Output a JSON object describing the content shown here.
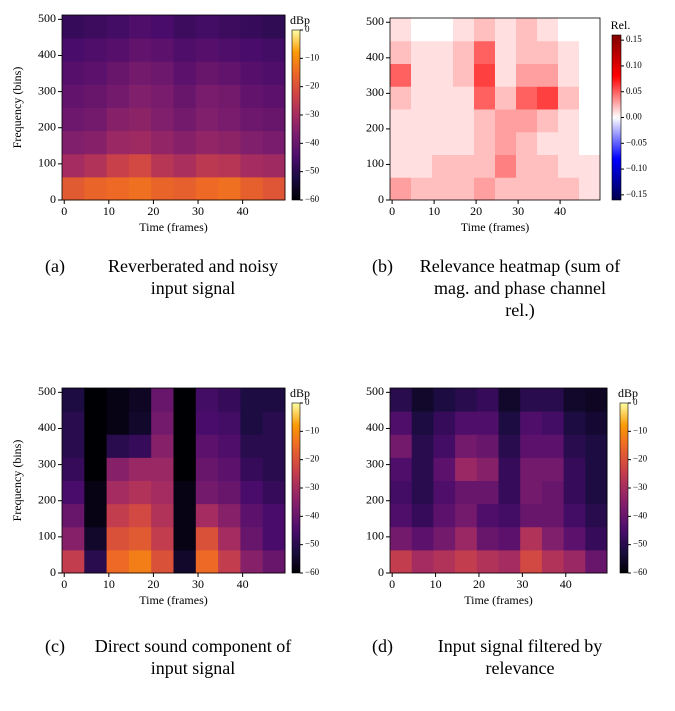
{
  "chart_data": [
    {
      "type": "heatmap",
      "caption_label": "(a)",
      "caption": "Reverberated and noisy input signal",
      "xlabel": "Time (frames)",
      "ylabel": "Frequency (bins)",
      "xlim": [
        -0.5,
        49.5
      ],
      "ylim": [
        0,
        512
      ],
      "xticks": [
        0,
        10,
        20,
        30,
        40
      ],
      "yticks": [
        0,
        100,
        200,
        300,
        400,
        500
      ],
      "xbins": [
        -0.5,
        4.5,
        9.5,
        14.5,
        19.5,
        24.5,
        29.5,
        34.5,
        39.5,
        44.5,
        49.5
      ],
      "ybins": [
        0,
        64,
        128,
        192,
        256,
        320,
        384,
        448,
        512
      ],
      "colormap": "inferno",
      "colorbar_label": "dBp",
      "clim": [
        -60,
        0
      ],
      "cticks": [
        0,
        {
          "value": -10,
          "label": "−10"
        },
        {
          "value": -20,
          "label": "−20"
        },
        {
          "value": -30,
          "label": "−30"
        },
        {
          "value": -40,
          "label": "−40"
        },
        {
          "value": -50,
          "label": "−50"
        },
        {
          "value": -60,
          "label": "−60"
        }
      ],
      "z": [
        [
          -18,
          -16,
          -15,
          -14,
          -16,
          -17,
          -15,
          -14,
          -17,
          -19
        ],
        [
          -30,
          -28,
          -24,
          -22,
          -27,
          -29,
          -26,
          -27,
          -30,
          -31
        ],
        [
          -36,
          -35,
          -32,
          -31,
          -33,
          -35,
          -33,
          -34,
          -36,
          -37
        ],
        [
          -39,
          -38,
          -35,
          -34,
          -36,
          -38,
          -36,
          -37,
          -39,
          -40
        ],
        [
          -41,
          -40,
          -38,
          -36,
          -37,
          -40,
          -37,
          -38,
          -41,
          -42
        ],
        [
          -43,
          -42,
          -40,
          -38,
          -39,
          -42,
          -40,
          -41,
          -43,
          -44
        ],
        [
          -45,
          -44,
          -43,
          -41,
          -42,
          -44,
          -43,
          -44,
          -45,
          -46
        ],
        [
          -48,
          -47,
          -46,
          -44,
          -45,
          -47,
          -46,
          -47,
          -48,
          -49
        ]
      ]
    },
    {
      "type": "heatmap",
      "caption_label": "(b)",
      "caption": "Relevance heatmap (sum of mag. and phase channel rel.)",
      "xlabel": "Time (frames)",
      "xlim": [
        -0.5,
        49.5
      ],
      "ylim": [
        0,
        512
      ],
      "xticks": [
        0,
        10,
        20,
        30,
        40
      ],
      "yticks": [
        0,
        100,
        200,
        300,
        400,
        500
      ],
      "xbins": [
        -0.5,
        4.5,
        9.5,
        14.5,
        19.5,
        24.5,
        29.5,
        34.5,
        39.5,
        44.5,
        49.5
      ],
      "ybins": [
        0,
        64,
        128,
        192,
        256,
        320,
        384,
        448,
        512
      ],
      "colormap": "seismic",
      "colorbar_label": "Rel.",
      "clim": [
        -0.16,
        0.16
      ],
      "cticks": [
        0.15,
        {
          "value": 0.1,
          "label": "0.10"
        },
        0.05,
        {
          "value": 0,
          "label": "0.00"
        },
        {
          "value": -0.05,
          "label": "−0.05"
        },
        {
          "value": -0.1,
          "label": "−0.10"
        },
        {
          "value": -0.15,
          "label": "−0.15"
        }
      ],
      "z": [
        [
          0.03,
          0.02,
          0.02,
          0.02,
          0.03,
          0.02,
          0.02,
          0.02,
          0.02,
          0.01
        ],
        [
          0.01,
          0.01,
          0.02,
          0.02,
          0.02,
          0.04,
          0.02,
          0.02,
          0.01,
          0.01
        ],
        [
          0.01,
          0.01,
          0.01,
          0.01,
          0.02,
          0.03,
          0.02,
          0.01,
          0.01,
          0
        ],
        [
          0.01,
          0.01,
          0.01,
          0.01,
          0.02,
          0.03,
          0.03,
          0.02,
          0.01,
          0
        ],
        [
          0.02,
          0.01,
          0.01,
          0.01,
          0.05,
          0.02,
          0.05,
          0.06,
          0.02,
          0
        ],
        [
          0.05,
          0.01,
          0.01,
          0.02,
          0.06,
          0.01,
          0.03,
          0.03,
          0.01,
          0
        ],
        [
          0.02,
          0.01,
          0.01,
          0.02,
          0.05,
          0.01,
          0.02,
          0.02,
          0.01,
          0
        ],
        [
          0.01,
          0,
          0,
          0.01,
          0.02,
          0.01,
          0.02,
          0.01,
          0,
          0
        ]
      ]
    },
    {
      "type": "heatmap",
      "caption_label": "(c)",
      "caption": "Direct sound component of input signal",
      "xlabel": "Time (frames)",
      "ylabel": "Frequency (bins)",
      "xlim": [
        -0.5,
        49.5
      ],
      "ylim": [
        0,
        512
      ],
      "xticks": [
        0,
        10,
        20,
        30,
        40
      ],
      "yticks": [
        0,
        100,
        200,
        300,
        400,
        500
      ],
      "xbins": [
        -0.5,
        4.5,
        9.5,
        14.5,
        19.5,
        24.5,
        29.5,
        34.5,
        39.5,
        44.5,
        49.5
      ],
      "ybins": [
        0,
        64,
        128,
        192,
        256,
        320,
        384,
        448,
        512
      ],
      "colormap": "inferno",
      "colorbar_label": "dBp",
      "clim": [
        -60,
        0
      ],
      "cticks": [
        0,
        {
          "value": -10,
          "label": "−10"
        },
        {
          "value": -20,
          "label": "−20"
        },
        {
          "value": -30,
          "label": "−30"
        },
        {
          "value": -40,
          "label": "−40"
        },
        {
          "value": -50,
          "label": "−50"
        },
        {
          "value": -60,
          "label": "−60"
        }
      ],
      "z": [
        [
          -25,
          -50,
          -15,
          -12,
          -20,
          -55,
          -15,
          -25,
          -35,
          -40
        ],
        [
          -35,
          -55,
          -20,
          -18,
          -25,
          -58,
          -20,
          -30,
          -40,
          -45
        ],
        [
          -40,
          -58,
          -25,
          -22,
          -28,
          -58,
          -30,
          -35,
          -42,
          -45
        ],
        [
          -45,
          -58,
          -30,
          -28,
          -30,
          -58,
          -38,
          -40,
          -45,
          -48
        ],
        [
          -48,
          -60,
          -35,
          -32,
          -32,
          -60,
          -40,
          -42,
          -48,
          -50
        ],
        [
          -50,
          -60,
          -50,
          -48,
          -35,
          -60,
          -42,
          -44,
          -50,
          -50
        ],
        [
          -50,
          -60,
          -58,
          -55,
          -38,
          -60,
          -45,
          -46,
          -52,
          -50
        ],
        [
          -52,
          -60,
          -58,
          -56,
          -40,
          -60,
          -46,
          -48,
          -52,
          -52
        ]
      ]
    },
    {
      "type": "heatmap",
      "caption_label": "(d)",
      "caption": "Input signal filtered by relevance",
      "xlabel": "Time (frames)",
      "xlim": [
        -0.5,
        49.5
      ],
      "ylim": [
        0,
        512
      ],
      "xticks": [
        0,
        10,
        20,
        30,
        40
      ],
      "yticks": [
        0,
        100,
        200,
        300,
        400,
        500
      ],
      "xbins": [
        -0.5,
        4.5,
        9.5,
        14.5,
        19.5,
        24.5,
        29.5,
        34.5,
        39.5,
        44.5,
        49.5
      ],
      "ybins": [
        0,
        64,
        128,
        192,
        256,
        320,
        384,
        448,
        512
      ],
      "colormap": "inferno",
      "colorbar_label": "dBp",
      "clim": [
        -60,
        0
      ],
      "cticks": [
        0,
        {
          "value": -10,
          "label": "−10"
        },
        {
          "value": -20,
          "label": "−20"
        },
        {
          "value": -30,
          "label": "−30"
        },
        {
          "value": -40,
          "label": "−40"
        },
        {
          "value": -50,
          "label": "−50"
        },
        {
          "value": -60,
          "label": "−60"
        }
      ],
      "z": [
        [
          -25,
          -30,
          -28,
          -25,
          -28,
          -30,
          -22,
          -28,
          -32,
          -40
        ],
        [
          -38,
          -42,
          -38,
          -32,
          -40,
          -42,
          -28,
          -36,
          -42,
          -48
        ],
        [
          -44,
          -48,
          -42,
          -38,
          -44,
          -46,
          -40,
          -40,
          -46,
          -50
        ],
        [
          -46,
          -50,
          -44,
          -40,
          -40,
          -48,
          -38,
          -40,
          -48,
          -52
        ],
        [
          -44,
          -50,
          -42,
          -32,
          -35,
          -48,
          -38,
          -38,
          -48,
          -52
        ],
        [
          -38,
          -50,
          -46,
          -38,
          -40,
          -50,
          -42,
          -42,
          -50,
          -52
        ],
        [
          -44,
          -52,
          -48,
          -44,
          -44,
          -52,
          -44,
          -46,
          -52,
          -54
        ],
        [
          -50,
          -55,
          -52,
          -50,
          -48,
          -55,
          -50,
          -50,
          -55,
          -56
        ]
      ]
    }
  ]
}
